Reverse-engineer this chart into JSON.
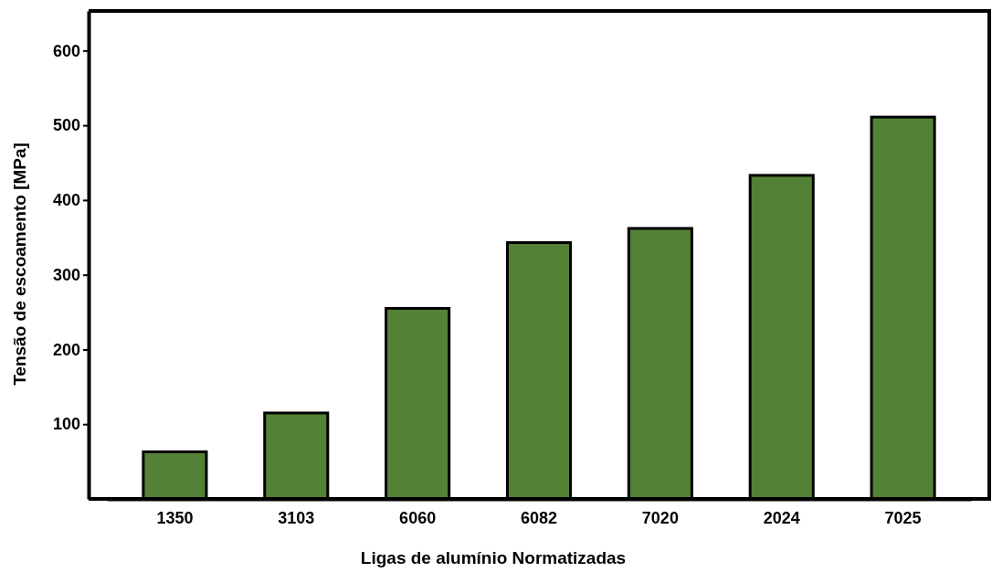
{
  "chart_data": {
    "type": "bar",
    "xlabel": "Ligas de alumínio Normatizadas",
    "ylabel": "Tensão de escoamento [MPa]",
    "categories": [
      "1350",
      "3103",
      "6060",
      "6082",
      "7020",
      "2024",
      "7025"
    ],
    "values": [
      63,
      115,
      255,
      343,
      362,
      433,
      511
    ],
    "color": "#538135",
    "ylim": [
      0,
      653
    ],
    "yticks": [
      100,
      200,
      300,
      400,
      500,
      600
    ],
    "grid": false
  }
}
